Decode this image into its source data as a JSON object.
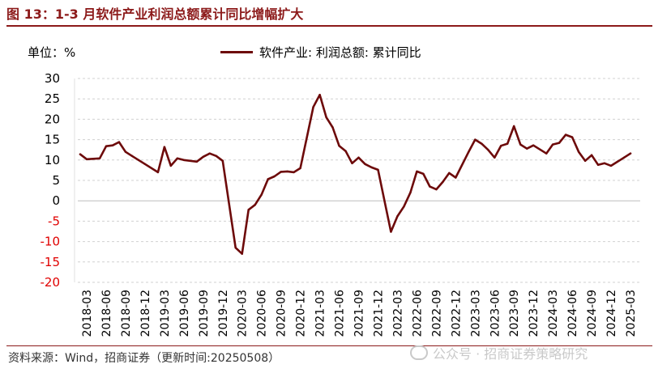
{
  "title": "图 13：1-3 月软件产业利润总额累计同比增幅扩大",
  "unit_label": "单位：%",
  "legend_label": "软件产业: 利润总额: 累计同比",
  "source": "资料来源：Wind，招商证券（更新时间:20250508）",
  "watermark": "公众号 · 招商证券策略研究",
  "colors": {
    "title": "#8c1a1a",
    "line": "#6d0a0a",
    "negative_tick": "#e00000",
    "grid": "#d0d0d0"
  },
  "chart_data": {
    "type": "line",
    "ylim": [
      -20,
      30
    ],
    "yticks": [
      30,
      25,
      20,
      15,
      10,
      5,
      0,
      -5,
      -10,
      -15,
      -20
    ],
    "grid": true,
    "legend_position": "top",
    "x_tick_labels": [
      "2018-03",
      "2018-06",
      "2018-09",
      "2018-12",
      "2019-03",
      "2019-06",
      "2019-09",
      "2019-12",
      "2020-03",
      "2020-06",
      "2020-09",
      "2020-12",
      "2021-03",
      "2021-06",
      "2021-09",
      "2021-12",
      "2022-03",
      "2022-06",
      "2022-09",
      "2022-12",
      "2023-03",
      "2023-06",
      "2023-09",
      "2023-12",
      "2024-03",
      "2024-06",
      "2024-09",
      "2024-12",
      "2025-03"
    ],
    "series": [
      {
        "name": "软件产业: 利润总额: 累计同比",
        "x": [
          "2018-02",
          "2018-03",
          "2018-05",
          "2018-06",
          "2018-07",
          "2018-08",
          "2018-09",
          "2018-10",
          "2018-11",
          "2018-12",
          "2019-02",
          "2019-03",
          "2019-04",
          "2019-05",
          "2019-06",
          "2019-07",
          "2019-08",
          "2019-09",
          "2019-10",
          "2019-11",
          "2019-12",
          "2020-02",
          "2020-03",
          "2020-04",
          "2020-05",
          "2020-06",
          "2020-07",
          "2020-08",
          "2020-09",
          "2020-10",
          "2020-11",
          "2020-12",
          "2021-02",
          "2021-03",
          "2021-04",
          "2021-05",
          "2021-06",
          "2021-07",
          "2021-08",
          "2021-09",
          "2021-10",
          "2021-11",
          "2021-12",
          "2022-02",
          "2022-03",
          "2022-04",
          "2022-05",
          "2022-06",
          "2022-07",
          "2022-08",
          "2022-09",
          "2022-10",
          "2022-11",
          "2022-12",
          "2023-02",
          "2023-03",
          "2023-04",
          "2023-05",
          "2023-06",
          "2023-07",
          "2023-08",
          "2023-09",
          "2023-10",
          "2023-11",
          "2023-12",
          "2024-02",
          "2024-03",
          "2024-04",
          "2024-05",
          "2024-06",
          "2024-07",
          "2024-08",
          "2024-09",
          "2024-10",
          "2024-11",
          "2024-12",
          "2025-02",
          "2025-03"
        ],
        "values": [
          11.4,
          10.2,
          10.4,
          13.4,
          13.6,
          14.4,
          12.0,
          11.0,
          10.0,
          9.0,
          7.0,
          13.2,
          8.6,
          10.4,
          10.0,
          9.8,
          9.6,
          10.8,
          11.6,
          11.0,
          9.8,
          -11.5,
          -13.0,
          -2.2,
          -1.0,
          1.5,
          5.3,
          6.0,
          7.1,
          7.2,
          7.0,
          8.0,
          23.0,
          26.0,
          20.5,
          18.0,
          13.5,
          12.2,
          9.2,
          10.6,
          9.0,
          8.2,
          7.6,
          -7.6,
          -3.8,
          -1.4,
          2.0,
          7.2,
          6.6,
          3.5,
          2.8,
          4.6,
          6.8,
          5.7,
          12.0,
          15.0,
          14.0,
          12.5,
          10.6,
          13.5,
          14.0,
          18.3,
          13.8,
          12.8,
          13.6,
          11.6,
          13.8,
          14.2,
          16.2,
          15.6,
          12.0,
          9.8,
          11.2,
          8.8,
          9.2,
          8.6,
          10.6,
          11.6
        ]
      }
    ]
  }
}
